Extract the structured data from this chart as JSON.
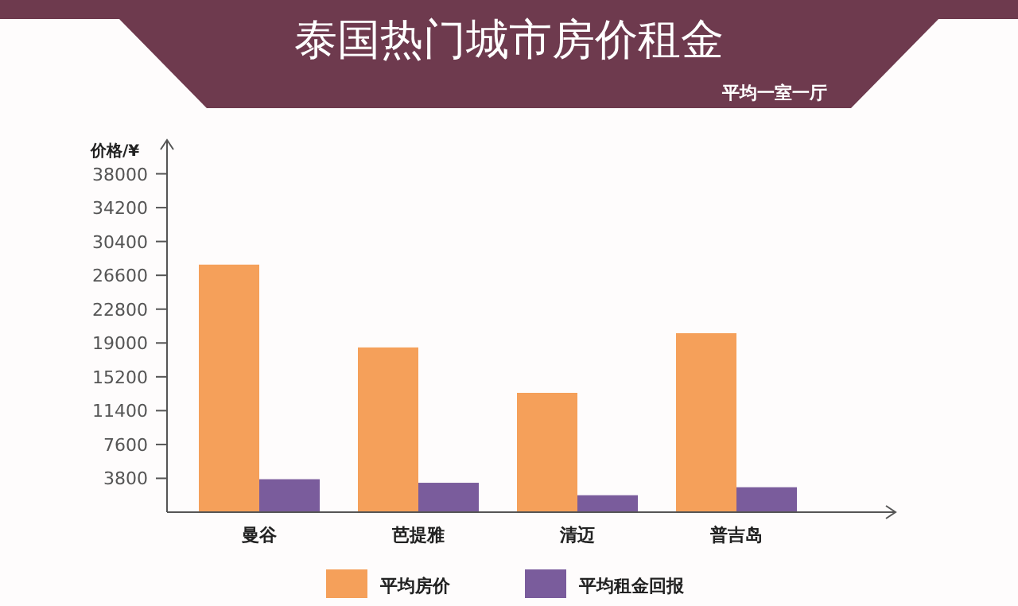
{
  "chart_data": {
    "type": "bar",
    "title": "泰国热门城市房价租金",
    "subtitle": "平均一室一厅",
    "ylabel": "价格/¥",
    "categories": [
      "曼谷",
      "芭提雅",
      "清迈",
      "普吉岛"
    ],
    "series": [
      {
        "name": "平均房价",
        "color": "#f5a05a",
        "values": [
          27800,
          18500,
          13400,
          20100
        ]
      },
      {
        "name": "平均租金回报",
        "color": "#7a5c9c",
        "values": [
          3700,
          3300,
          1900,
          2800
        ]
      }
    ],
    "ylim": [
      0,
      41800
    ],
    "yticks": [
      3800,
      7600,
      11400,
      15200,
      19000,
      22800,
      26600,
      30400,
      34200,
      38000
    ],
    "grid": false,
    "legend": "bottom"
  }
}
